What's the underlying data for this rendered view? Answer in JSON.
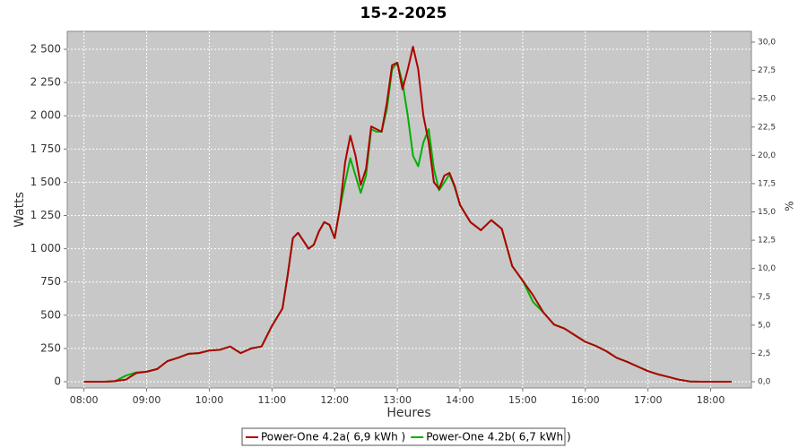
{
  "chart_data": {
    "type": "line",
    "title": "15-2-2025",
    "x_label": "Heures",
    "y_label": "Watts",
    "y2_label": "%",
    "x": [
      480,
      490,
      500,
      510,
      520,
      530,
      540,
      550,
      560,
      570,
      580,
      590,
      600,
      610,
      620,
      630,
      640,
      650,
      660,
      670,
      675,
      680,
      685,
      690,
      695,
      700,
      705,
      710,
      715,
      720,
      725,
      730,
      735,
      740,
      745,
      750,
      755,
      760,
      765,
      770,
      775,
      780,
      785,
      790,
      795,
      800,
      805,
      810,
      815,
      820,
      825,
      830,
      835,
      840,
      850,
      860,
      870,
      880,
      890,
      900,
      910,
      920,
      930,
      940,
      950,
      960,
      970,
      980,
      990,
      1000,
      1010,
      1020,
      1030,
      1040,
      1050,
      1060,
      1070,
      1080,
      1090,
      1100
    ],
    "series": [
      {
        "name": "Power-One 4.2a( 6,9 kWh )",
        "color": "#b00000",
        "values": [
          0,
          0,
          0,
          5,
          15,
          65,
          75,
          95,
          155,
          180,
          210,
          215,
          235,
          240,
          265,
          215,
          250,
          265,
          420,
          550,
          800,
          1080,
          1120,
          1060,
          1000,
          1030,
          1130,
          1200,
          1180,
          1080,
          1300,
          1650,
          1850,
          1700,
          1480,
          1600,
          1920,
          1900,
          1880,
          2100,
          2380,
          2400,
          2200,
          2350,
          2520,
          2350,
          2000,
          1800,
          1500,
          1450,
          1550,
          1570,
          1470,
          1330,
          1200,
          1140,
          1215,
          1150,
          870,
          760,
          650,
          520,
          430,
          400,
          350,
          300,
          270,
          230,
          180,
          150,
          115,
          80,
          55,
          35,
          15,
          2,
          0,
          0,
          0,
          0
        ]
      },
      {
        "name": "Power-One 4.2b( 6,7 kWh )",
        "color": "#00b000",
        "values": [
          0,
          0,
          0,
          5,
          45,
          70,
          75,
          95,
          155,
          180,
          210,
          215,
          235,
          240,
          265,
          215,
          250,
          265,
          420,
          550,
          800,
          1080,
          1120,
          1060,
          1000,
          1030,
          1130,
          1200,
          1180,
          1080,
          1300,
          1500,
          1680,
          1550,
          1420,
          1550,
          1900,
          1880,
          1880,
          2050,
          2350,
          2400,
          2250,
          2000,
          1700,
          1620,
          1800,
          1900,
          1600,
          1440,
          1500,
          1560,
          1460,
          1330,
          1200,
          1140,
          1215,
          1150,
          870,
          760,
          600,
          520,
          430,
          400,
          350,
          300,
          270,
          230,
          180,
          150,
          115,
          80,
          55,
          35,
          15,
          2,
          0,
          0,
          0,
          0
        ]
      }
    ],
    "xlim": [
      464,
      1119
    ],
    "xticks": [
      {
        "value": 480,
        "label": "08:00"
      },
      {
        "value": 540,
        "label": "09:00"
      },
      {
        "value": 600,
        "label": "10:00"
      },
      {
        "value": 660,
        "label": "11:00"
      },
      {
        "value": 720,
        "label": "12:00"
      },
      {
        "value": 780,
        "label": "13:00"
      },
      {
        "value": 840,
        "label": "14:00"
      },
      {
        "value": 900,
        "label": "15:00"
      },
      {
        "value": 960,
        "label": "16:00"
      },
      {
        "value": 1020,
        "label": "17:00"
      },
      {
        "value": 1080,
        "label": "18:00"
      }
    ],
    "ylim": [
      -47,
      2635
    ],
    "yticks": [
      0,
      250,
      500,
      750,
      {
        "value": 1000,
        "label": "1 000"
      },
      {
        "value": 1250,
        "label": "1 250"
      },
      {
        "value": 1500,
        "label": "1 500"
      },
      {
        "value": 1750,
        "label": "1 750"
      },
      {
        "value": 2000,
        "label": "2 000"
      },
      {
        "value": 2250,
        "label": "2 250"
      },
      {
        "value": 2500,
        "label": "2 500"
      }
    ],
    "y2lim": [
      -0.55,
      30.95
    ],
    "y2ticks": [
      {
        "value": 0,
        "label": "0,0"
      },
      {
        "value": 2.5,
        "label": "2,5"
      },
      {
        "value": 5,
        "label": "5,0"
      },
      {
        "value": 7.5,
        "label": "7,5"
      },
      {
        "value": 10,
        "label": "10,0"
      },
      {
        "value": 12.5,
        "label": "12,5"
      },
      {
        "value": 15,
        "label": "15,0"
      },
      {
        "value": 17.5,
        "label": "17,5"
      },
      {
        "value": 20,
        "label": "20,0"
      },
      {
        "value": 22.5,
        "label": "22,5"
      },
      {
        "value": 25,
        "label": "25,0"
      },
      {
        "value": 27.5,
        "label": "27,5"
      },
      {
        "value": 30,
        "label": "30,0"
      }
    ],
    "grid": true,
    "legend": "bottom"
  }
}
